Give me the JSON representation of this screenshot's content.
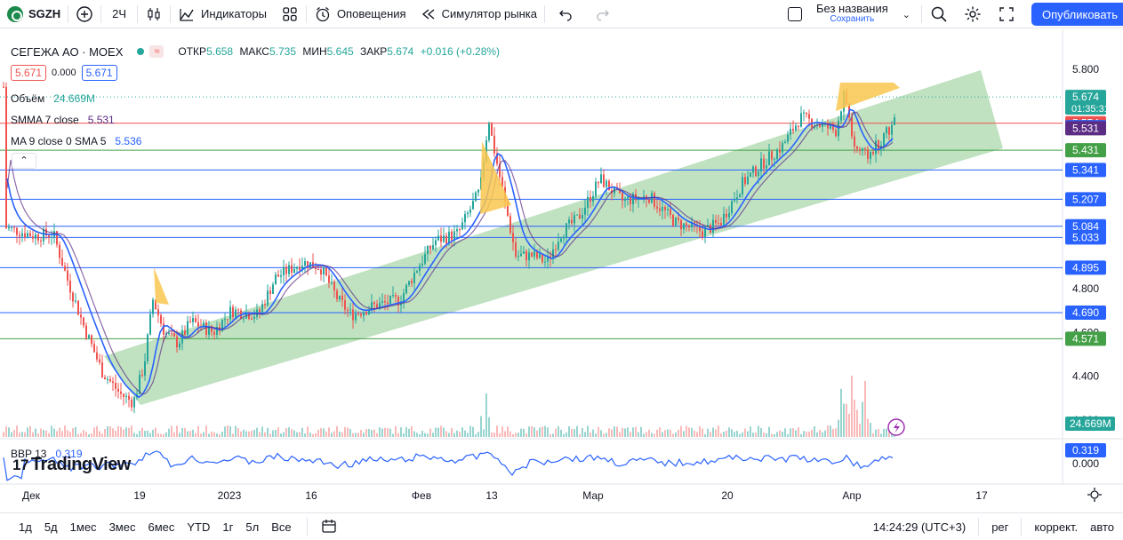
{
  "toolbar": {
    "symbol": "SGZH",
    "interval": "2Ч",
    "indicators_label": "Индикаторы",
    "alerts_label": "Оповещения",
    "replay_label": "Симулятор рынка",
    "layout_name": "Без названия",
    "layout_save": "Сохранить",
    "publish_label": "Опубликовать"
  },
  "legend": {
    "title": "СЕГЕЖА АО · MOEX",
    "open_label": "ОТКР",
    "open": "5.658",
    "high_label": "МАКС",
    "high": "5.735",
    "low_label": "МИН",
    "low": "5.645",
    "close_label": "ЗАКР",
    "close": "5.674",
    "change": "+0.016 (+0.28%)",
    "bid": "5.671",
    "spread": "0.000",
    "ask": "5.671",
    "volume_label": "Объём",
    "volume": "24.669M",
    "smma_label": "SMMA 7 close",
    "smma": "5.531",
    "ma_label": "MA 9 close 0 SMA 5",
    "ma": "5.536",
    "bbp_label": "BBP 13",
    "bbp": "0.319"
  },
  "watermark": "TradingView",
  "colors": {
    "up": "#26a69a",
    "down": "#ef5350",
    "ma": "#2962ff",
    "smma": "#1e3a8a",
    "channel": "#a5d6a7",
    "annotation": "#f9c74f"
  },
  "chart_data": {
    "type": "line",
    "symbol": "СЕГЕЖА АО · MOEX",
    "y_ticks": [
      "5.800",
      "4.800",
      "4.600",
      "4.400",
      "4.200"
    ],
    "x_ticks": [
      "Дек",
      "19",
      "2023",
      "16",
      "Фев",
      "13",
      "Мар",
      "20",
      "Апр",
      "17"
    ],
    "ylim": [
      4.2,
      5.8
    ],
    "horizontal_levels": [
      {
        "value": 5.554,
        "color": "#ef5350"
      },
      {
        "value": 5.431,
        "color": "#43a047"
      },
      {
        "value": 5.341,
        "color": "#2962ff"
      },
      {
        "value": 5.207,
        "color": "#2962ff"
      },
      {
        "value": 5.084,
        "color": "#2962ff"
      },
      {
        "value": 5.033,
        "color": "#2962ff"
      },
      {
        "value": 4.895,
        "color": "#2962ff"
      },
      {
        "value": 4.69,
        "color": "#2962ff"
      },
      {
        "value": 4.571,
        "color": "#43a047"
      }
    ],
    "price_labels": [
      {
        "value": 5.674,
        "text": "5.674",
        "sub": "01:35:31",
        "color": "#26a69a"
      },
      {
        "value": 5.554,
        "text": "5.554",
        "color": "#ef5350"
      },
      {
        "value": 5.536,
        "text": "5.536",
        "color": "#2962ff"
      },
      {
        "value": 5.531,
        "text": "5.531",
        "color": "#5b2c83"
      },
      {
        "value": 5.431,
        "text": "5.431",
        "color": "#43a047"
      },
      {
        "value": 5.341,
        "text": "5.341",
        "color": "#2962ff"
      },
      {
        "value": 5.207,
        "text": "5.207",
        "color": "#2962ff"
      },
      {
        "value": 5.084,
        "text": "5.084",
        "color": "#2962ff"
      },
      {
        "value": 5.033,
        "text": "5.033",
        "color": "#2962ff"
      },
      {
        "value": 4.895,
        "text": "4.895",
        "color": "#2962ff"
      },
      {
        "value": 4.69,
        "text": "4.690",
        "color": "#2962ff"
      },
      {
        "value": 4.571,
        "text": "4.571",
        "color": "#43a047"
      }
    ],
    "volume_label": "24.669M",
    "bbp_value_label": "0.319",
    "bbp_zero_label": "0.000",
    "series": [
      {
        "name": "SMMA 7 close",
        "values": [
          5.02,
          5.0,
          4.9,
          4.55,
          4.3,
          4.42,
          4.62,
          4.68,
          4.64,
          4.7,
          4.72,
          4.78,
          4.88,
          4.9,
          4.82,
          4.84,
          4.86,
          4.92,
          5.02,
          5.1,
          5.28,
          5.18,
          5.12,
          5.22,
          5.3,
          5.3,
          5.26,
          5.18,
          5.16,
          5.24,
          5.38,
          5.46,
          5.52,
          5.44,
          5.5,
          5.56
        ]
      },
      {
        "name": "MA 9 close 0 SMA 5",
        "values": [
          5.04,
          5.0,
          4.86,
          4.5,
          4.28,
          4.48,
          4.66,
          4.7,
          4.62,
          4.7,
          4.74,
          4.8,
          4.9,
          4.86,
          4.8,
          4.86,
          4.88,
          4.96,
          5.06,
          5.14,
          5.32,
          5.12,
          5.08,
          5.26,
          5.32,
          5.3,
          5.24,
          5.16,
          5.18,
          5.28,
          5.42,
          5.5,
          5.56,
          5.42,
          5.52,
          5.6
        ]
      }
    ]
  },
  "bottombar": {
    "ranges": [
      "1д",
      "5д",
      "1мес",
      "3мес",
      "6мес",
      "YTD",
      "1г",
      "5л",
      "Все"
    ],
    "time": "14:24:29 (UTC+3)",
    "regular": "рег",
    "adjust": "коррект.",
    "auto": "авто"
  }
}
